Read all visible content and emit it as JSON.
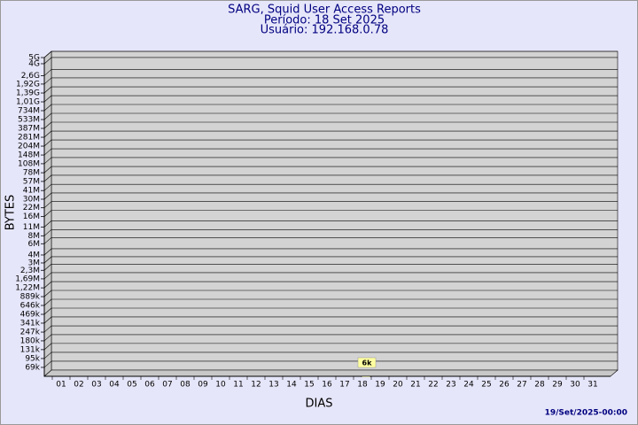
{
  "chart_data": {
    "type": "bar",
    "title": "SARG, Squid User Access Reports",
    "subtitle": [
      "Período: 18 Set 2025",
      "Usuário: 192.168.0.78"
    ],
    "x_label": "DIAS",
    "y_label": "BYTES",
    "footer": "19/Set/2025-00:00",
    "categories": [
      "01",
      "02",
      "03",
      "04",
      "05",
      "06",
      "07",
      "08",
      "09",
      "10",
      "11",
      "12",
      "13",
      "14",
      "15",
      "16",
      "17",
      "18",
      "19",
      "20",
      "21",
      "22",
      "23",
      "24",
      "25",
      "26",
      "27",
      "28",
      "29",
      "30",
      "31"
    ],
    "values": [
      null,
      null,
      null,
      null,
      null,
      null,
      null,
      null,
      null,
      null,
      null,
      null,
      null,
      null,
      null,
      null,
      null,
      6000,
      null,
      null,
      null,
      null,
      null,
      null,
      null,
      null,
      null,
      null,
      null,
      null,
      null
    ],
    "value_labels": [
      null,
      null,
      null,
      null,
      null,
      null,
      null,
      null,
      null,
      null,
      null,
      null,
      null,
      null,
      null,
      null,
      null,
      "6k",
      null,
      null,
      null,
      null,
      null,
      null,
      null,
      null,
      null,
      null,
      null,
      null,
      null
    ],
    "color": "#ffffc0",
    "log_scale": true,
    "ylim": [
      50000,
      5000000000
    ],
    "yticks": [
      {
        "value": 69000,
        "label": "69k"
      },
      {
        "value": 95000,
        "label": "95k"
      },
      {
        "value": 131000,
        "label": "131k"
      },
      {
        "value": 180000,
        "label": "180k"
      },
      {
        "value": 247000,
        "label": "247k"
      },
      {
        "value": 341000,
        "label": "341k"
      },
      {
        "value": 469000,
        "label": "469k"
      },
      {
        "value": 646000,
        "label": "646k"
      },
      {
        "value": 889000,
        "label": "889k"
      },
      {
        "value": 1220000,
        "label": "1,22M"
      },
      {
        "value": 1690000,
        "label": "1,69M"
      },
      {
        "value": 2300000,
        "label": "2,3M"
      },
      {
        "value": 3000000,
        "label": "3M"
      },
      {
        "value": 4000000,
        "label": "4M"
      },
      {
        "value": 6000000,
        "label": "6M"
      },
      {
        "value": 8000000,
        "label": "8M"
      },
      {
        "value": 11000000,
        "label": "11M"
      },
      {
        "value": 16000000,
        "label": "16M"
      },
      {
        "value": 22000000,
        "label": "22M"
      },
      {
        "value": 30000000,
        "label": "30M"
      },
      {
        "value": 41000000,
        "label": "41M"
      },
      {
        "value": 57000000,
        "label": "57M"
      },
      {
        "value": 78000000,
        "label": "78M"
      },
      {
        "value": 108000000,
        "label": "108M"
      },
      {
        "value": 148000000,
        "label": "148M"
      },
      {
        "value": 204000000,
        "label": "204M"
      },
      {
        "value": 281000000,
        "label": "281M"
      },
      {
        "value": 387000000,
        "label": "387M"
      },
      {
        "value": 533000000,
        "label": "533M"
      },
      {
        "value": 734000000,
        "label": "734M"
      },
      {
        "value": 1010000000,
        "label": "1,01G"
      },
      {
        "value": 1390000000,
        "label": "1,39G"
      },
      {
        "value": 1920000000,
        "label": "1,92G"
      },
      {
        "value": 2600000000,
        "label": "2,6G"
      },
      {
        "value": 4000000000,
        "label": "4G"
      },
      {
        "value": 5000000000,
        "label": "5G"
      }
    ],
    "grid": true
  }
}
